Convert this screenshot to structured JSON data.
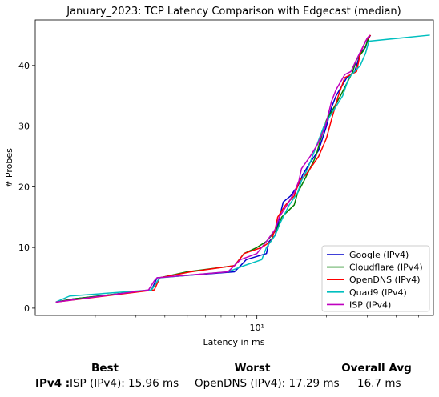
{
  "chart_data": {
    "type": "line",
    "title": "January_2023: TCP Latency Comparison with Edgecast (median)",
    "xlabel": "Latency in ms",
    "ylabel": "# Probes",
    "xscale": "log",
    "xlim": [
      1.1,
      58
    ],
    "ylim": [
      -1.2,
      47.5
    ],
    "xticks": [
      {
        "value": 10,
        "label": "10¹"
      }
    ],
    "yticks": [
      0,
      10,
      20,
      30,
      40
    ],
    "grid": false,
    "legend_position": "lower right",
    "series": [
      {
        "name": "Google (IPv4)",
        "color": "#0000cc",
        "points": [
          [
            1.35,
            1
          ],
          [
            1.6,
            1.5
          ],
          [
            3.5,
            3
          ],
          [
            3.7,
            5
          ],
          [
            8,
            6
          ],
          [
            8.5,
            7
          ],
          [
            9,
            8
          ],
          [
            11,
            9
          ],
          [
            11.3,
            11
          ],
          [
            12,
            12
          ],
          [
            13,
            17.5
          ],
          [
            14,
            18.5
          ],
          [
            14.6,
            19.5
          ],
          [
            15,
            20
          ],
          [
            15.8,
            22
          ],
          [
            17,
            24
          ],
          [
            18.5,
            26
          ],
          [
            20,
            30
          ],
          [
            21,
            33
          ],
          [
            22,
            35
          ],
          [
            24.5,
            38
          ],
          [
            26.5,
            39
          ],
          [
            28,
            42
          ],
          [
            29.5,
            43
          ],
          [
            30,
            44
          ],
          [
            31,
            45
          ]
        ]
      },
      {
        "name": "Cloudflare (IPv4)",
        "color": "#007f00",
        "points": [
          [
            1.35,
            1
          ],
          [
            1.6,
            1.5
          ],
          [
            3.5,
            3
          ],
          [
            3.8,
            5
          ],
          [
            5,
            6
          ],
          [
            8,
            7
          ],
          [
            8.8,
            9
          ],
          [
            10,
            10
          ],
          [
            11,
            11
          ],
          [
            12.2,
            13
          ],
          [
            12.8,
            15
          ],
          [
            14.5,
            17
          ],
          [
            15,
            19
          ],
          [
            16,
            21
          ],
          [
            18,
            25
          ],
          [
            18.6,
            27
          ],
          [
            20,
            31
          ],
          [
            21.5,
            33
          ],
          [
            23,
            35
          ],
          [
            26,
            39
          ],
          [
            27,
            41
          ],
          [
            29,
            42.5
          ],
          [
            30.5,
            44.5
          ]
        ]
      },
      {
        "name": "OpenDNS (IPv4)",
        "color": "#ff0000",
        "points": [
          [
            1.35,
            1
          ],
          [
            3.6,
            3
          ],
          [
            3.8,
            5
          ],
          [
            5.2,
            6
          ],
          [
            8,
            7
          ],
          [
            8.8,
            9
          ],
          [
            10.5,
            10
          ],
          [
            11.5,
            11
          ],
          [
            12,
            13
          ],
          [
            12.3,
            15
          ],
          [
            13.3,
            17
          ],
          [
            14.5,
            18.5
          ],
          [
            15.3,
            21
          ],
          [
            16.3,
            22
          ],
          [
            18.5,
            25
          ],
          [
            20,
            28
          ],
          [
            21,
            31
          ],
          [
            22.5,
            35
          ],
          [
            24,
            38
          ],
          [
            27,
            39
          ],
          [
            28,
            42
          ],
          [
            29.5,
            44
          ],
          [
            31,
            45
          ]
        ]
      },
      {
        "name": "Quad9 (IPv4)",
        "color": "#00bfbf",
        "points": [
          [
            1.35,
            1
          ],
          [
            1.55,
            2
          ],
          [
            3.5,
            3
          ],
          [
            3.8,
            5
          ],
          [
            7.5,
            6
          ],
          [
            8.8,
            7
          ],
          [
            10.5,
            8
          ],
          [
            11,
            10
          ],
          [
            12,
            12
          ],
          [
            12.6,
            14
          ],
          [
            13.8,
            17
          ],
          [
            15,
            19
          ],
          [
            15.6,
            21
          ],
          [
            16.6,
            23
          ],
          [
            17.8,
            26
          ],
          [
            19.5,
            30
          ],
          [
            21,
            32
          ],
          [
            23.5,
            35
          ],
          [
            25,
            38
          ],
          [
            28,
            40
          ],
          [
            29.5,
            42
          ],
          [
            30.5,
            44
          ],
          [
            56,
            45
          ]
        ]
      },
      {
        "name": "ISP (IPv4)",
        "color": "#bf00bf",
        "points": [
          [
            1.35,
            1
          ],
          [
            3.4,
            3
          ],
          [
            3.6,
            4.5
          ],
          [
            3.7,
            5
          ],
          [
            7.5,
            6
          ],
          [
            8.5,
            8
          ],
          [
            10,
            9
          ],
          [
            11,
            11
          ],
          [
            12,
            13
          ],
          [
            12.5,
            15
          ],
          [
            13.5,
            17
          ],
          [
            14.5,
            19
          ],
          [
            15.2,
            21
          ],
          [
            15.6,
            23
          ],
          [
            17,
            25
          ],
          [
            18.3,
            27
          ],
          [
            19.8,
            30
          ],
          [
            21,
            34
          ],
          [
            22,
            36
          ],
          [
            24,
            38.5
          ],
          [
            25.5,
            39
          ],
          [
            27,
            41
          ],
          [
            30,
            44.5
          ],
          [
            30.8,
            45
          ]
        ]
      }
    ]
  },
  "summary": {
    "best_header": "Best",
    "worst_header": "Worst",
    "avg_header": "Overall Avg",
    "row_label": "IPv4 :",
    "best_value": "ISP (IPv4): 15.96 ms",
    "worst_value": "OpenDNS (IPv4): 17.29 ms",
    "avg_value": "16.7 ms"
  }
}
